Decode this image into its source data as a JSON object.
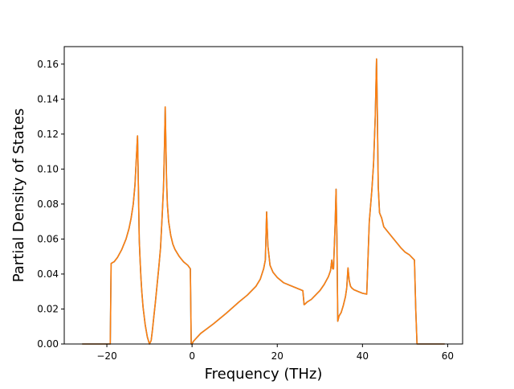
{
  "chart_data": {
    "type": "line",
    "title": "",
    "xlabel": "Frequency (THz)",
    "ylabel": "Partial Density of States",
    "xlim": [
      -30.0,
      63.5
    ],
    "ylim": [
      0.0,
      0.17
    ],
    "xticks": [
      -20,
      0,
      20,
      40,
      60
    ],
    "xtick_labels": [
      "−20",
      "0",
      "20",
      "40",
      "60"
    ],
    "yticks": [
      0.0,
      0.02,
      0.04,
      0.06,
      0.08,
      0.1,
      0.12,
      0.14,
      0.16
    ],
    "ytick_labels": [
      "0.00",
      "0.02",
      "0.04",
      "0.06",
      "0.08",
      "0.10",
      "0.12",
      "0.14",
      "0.16"
    ],
    "grid": false,
    "legend": "none",
    "series": [
      {
        "color": "#1f77b4",
        "x": [
          -25.8,
          -19.2,
          -19.0,
          -18.7,
          -18.3,
          -17.5,
          -16.5,
          -15.5,
          -14.8,
          -14.3,
          -13.8,
          -13.4,
          -13.1,
          -12.8,
          -12.6,
          -12.4,
          -12.2,
          -12.0,
          -11.8,
          -11.5,
          -11.0,
          -10.5,
          -10.0,
          -9.6,
          -9.3,
          -9.0,
          -8.6,
          -8.2,
          -7.8,
          -7.4,
          -7.0,
          -6.7,
          -6.5,
          -6.3,
          -6.15,
          -6.0,
          -5.8,
          -5.5,
          -5.0,
          -4.5,
          -4.0,
          -3.0,
          -2.0,
          -1.0,
          -0.4,
          -0.2,
          0.0,
          0.3,
          2.0,
          5.0,
          8.0,
          11.0,
          13.0,
          15.0,
          16.0,
          16.8,
          17.2,
          17.5,
          17.8,
          18.3,
          19.0,
          20.0,
          21.5,
          23.0,
          24.5,
          26.0,
          26.3,
          26.6,
          27.0,
          28.0,
          29.0,
          30.0,
          31.0,
          32.0,
          32.5,
          32.8,
          33.0,
          33.2,
          33.6,
          33.8,
          34.0,
          34.2,
          34.5,
          35.0,
          35.5,
          36.0,
          36.3,
          36.6,
          36.9,
          37.2,
          37.5,
          38.0,
          38.5,
          39.0,
          40.0,
          41.0,
          41.6,
          41.8,
          42.2,
          42.6,
          43.0,
          43.3,
          43.5,
          43.7,
          44.0,
          44.5,
          45.0,
          46.0,
          47.0,
          48.0,
          49.0,
          50.0,
          51.0,
          52.2,
          52.5,
          52.8,
          53.0,
          55.0,
          59.3
        ],
        "y": [
          0.0,
          0.0,
          0.046,
          0.0465,
          0.047,
          0.0495,
          0.054,
          0.06,
          0.066,
          0.072,
          0.08,
          0.091,
          0.105,
          0.119,
          0.09,
          0.06,
          0.048,
          0.038,
          0.03,
          0.021,
          0.011,
          0.004,
          0.0,
          0.002,
          0.008,
          0.015,
          0.024,
          0.034,
          0.044,
          0.055,
          0.074,
          0.09,
          0.11,
          0.1355,
          0.115,
          0.095,
          0.08,
          0.07,
          0.062,
          0.057,
          0.054,
          0.05,
          0.047,
          0.045,
          0.043,
          0.0,
          0.0,
          0.0015,
          0.006,
          0.0115,
          0.0175,
          0.024,
          0.028,
          0.033,
          0.037,
          0.043,
          0.048,
          0.0755,
          0.056,
          0.045,
          0.041,
          0.038,
          0.035,
          0.0335,
          0.032,
          0.0305,
          0.0225,
          0.023,
          0.024,
          0.0255,
          0.028,
          0.0305,
          0.034,
          0.0385,
          0.042,
          0.048,
          0.043,
          0.043,
          0.07,
          0.0885,
          0.06,
          0.013,
          0.016,
          0.018,
          0.022,
          0.027,
          0.032,
          0.0435,
          0.036,
          0.033,
          0.032,
          0.031,
          0.0305,
          0.03,
          0.029,
          0.0285,
          0.07,
          0.076,
          0.088,
          0.103,
          0.13,
          0.163,
          0.13,
          0.09,
          0.075,
          0.072,
          0.067,
          0.064,
          0.061,
          0.058,
          0.055,
          0.0525,
          0.051,
          0.048,
          0.02,
          0.0,
          0.0,
          0.0,
          0.0
        ]
      },
      {
        "color": "#ff7f0e",
        "x": [
          -25.8,
          -19.2,
          -19.0,
          -18.7,
          -18.3,
          -17.5,
          -16.5,
          -15.5,
          -14.8,
          -14.3,
          -13.8,
          -13.4,
          -13.1,
          -12.8,
          -12.6,
          -12.4,
          -12.2,
          -12.0,
          -11.8,
          -11.5,
          -11.0,
          -10.5,
          -10.0,
          -9.6,
          -9.3,
          -9.0,
          -8.6,
          -8.2,
          -7.8,
          -7.4,
          -7.0,
          -6.7,
          -6.5,
          -6.3,
          -6.15,
          -6.0,
          -5.8,
          -5.5,
          -5.0,
          -4.5,
          -4.0,
          -3.0,
          -2.0,
          -1.0,
          -0.4,
          -0.2,
          0.0,
          0.3,
          2.0,
          5.0,
          8.0,
          11.0,
          13.0,
          15.0,
          16.0,
          16.8,
          17.2,
          17.5,
          17.8,
          18.3,
          19.0,
          20.0,
          21.5,
          23.0,
          24.5,
          26.0,
          26.3,
          26.6,
          27.0,
          28.0,
          29.0,
          30.0,
          31.0,
          32.0,
          32.5,
          32.8,
          33.0,
          33.2,
          33.6,
          33.8,
          34.0,
          34.2,
          34.5,
          35.0,
          35.5,
          36.0,
          36.3,
          36.6,
          36.9,
          37.2,
          37.5,
          38.0,
          38.5,
          39.0,
          40.0,
          41.0,
          41.6,
          41.8,
          42.2,
          42.6,
          43.0,
          43.3,
          43.5,
          43.7,
          44.0,
          44.5,
          45.0,
          46.0,
          47.0,
          48.0,
          49.0,
          50.0,
          51.0,
          52.2,
          52.5,
          52.8,
          53.0,
          55.0,
          59.3
        ],
        "y": [
          0.0,
          0.0,
          0.046,
          0.0465,
          0.047,
          0.0495,
          0.054,
          0.06,
          0.066,
          0.072,
          0.08,
          0.091,
          0.105,
          0.119,
          0.09,
          0.06,
          0.048,
          0.038,
          0.03,
          0.021,
          0.011,
          0.004,
          0.0,
          0.002,
          0.008,
          0.015,
          0.024,
          0.034,
          0.044,
          0.055,
          0.074,
          0.09,
          0.11,
          0.1355,
          0.115,
          0.095,
          0.08,
          0.07,
          0.062,
          0.057,
          0.054,
          0.05,
          0.047,
          0.045,
          0.043,
          0.0,
          0.0,
          0.0015,
          0.006,
          0.0115,
          0.0175,
          0.024,
          0.028,
          0.033,
          0.037,
          0.043,
          0.048,
          0.0755,
          0.056,
          0.045,
          0.041,
          0.038,
          0.035,
          0.0335,
          0.032,
          0.0305,
          0.0225,
          0.023,
          0.024,
          0.0255,
          0.028,
          0.0305,
          0.034,
          0.0385,
          0.042,
          0.048,
          0.043,
          0.043,
          0.07,
          0.0885,
          0.06,
          0.013,
          0.016,
          0.018,
          0.022,
          0.027,
          0.032,
          0.0435,
          0.036,
          0.033,
          0.032,
          0.031,
          0.0305,
          0.03,
          0.029,
          0.0285,
          0.07,
          0.076,
          0.088,
          0.103,
          0.13,
          0.163,
          0.13,
          0.09,
          0.075,
          0.072,
          0.067,
          0.064,
          0.061,
          0.058,
          0.055,
          0.0525,
          0.051,
          0.048,
          0.02,
          0.0,
          0.0,
          0.0,
          0.0
        ]
      }
    ]
  }
}
